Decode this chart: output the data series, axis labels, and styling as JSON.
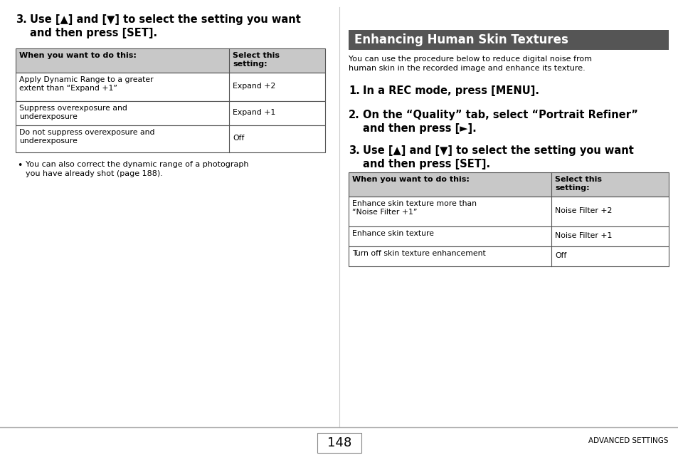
{
  "bg_color": "#ffffff",
  "header_bg": "#555555",
  "header_text_color": "#ffffff",
  "table_header_bg": "#c8c8c8",
  "table_border_color": "#555555",
  "divider_color": "#bbbbbb",
  "page_number": "148",
  "footer_right": "ADVANCED SETTINGS",
  "left_heading_num": "3.",
  "left_heading": "Use [▲] and [▼] to select the setting you want\nand then press [SET].",
  "left_table_headers": [
    "When you want to do this:",
    "Select this\nsetting:"
  ],
  "left_table_rows": [
    [
      "Apply Dynamic Range to a greater\nextent than “Expand +1”",
      "Expand +2"
    ],
    [
      "Suppress overexposure and\nunderexposure",
      "Expand +1"
    ],
    [
      "Do not suppress overexposure and\nunderexposure",
      "Off"
    ]
  ],
  "left_bullet": "You can also correct the dynamic range of a photograph\nyou have already shot (page 188).",
  "right_section_title": "Enhancing Human Skin Textures",
  "right_intro": "You can use the procedure below to reduce digital noise from\nhuman skin in the recorded image and enhance its texture.",
  "right_steps": [
    {
      "num": "1.",
      "text": "In a REC mode, press [MENU]."
    },
    {
      "num": "2.",
      "text": "On the “Quality” tab, select “Portrait Refiner”\nand then press [►]."
    },
    {
      "num": "3.",
      "text": "Use [▲] and [▼] to select the setting you want\nand then press [SET]."
    }
  ],
  "right_table_headers": [
    "When you want to do this:",
    "Select this\nsetting:"
  ],
  "right_table_rows": [
    [
      "Enhance skin texture more than\n“Noise Filter +1”",
      "Noise Filter +2"
    ],
    [
      "Enhance skin texture",
      "Noise Filter +1"
    ],
    [
      "Turn off skin texture enhancement",
      "Off"
    ]
  ]
}
